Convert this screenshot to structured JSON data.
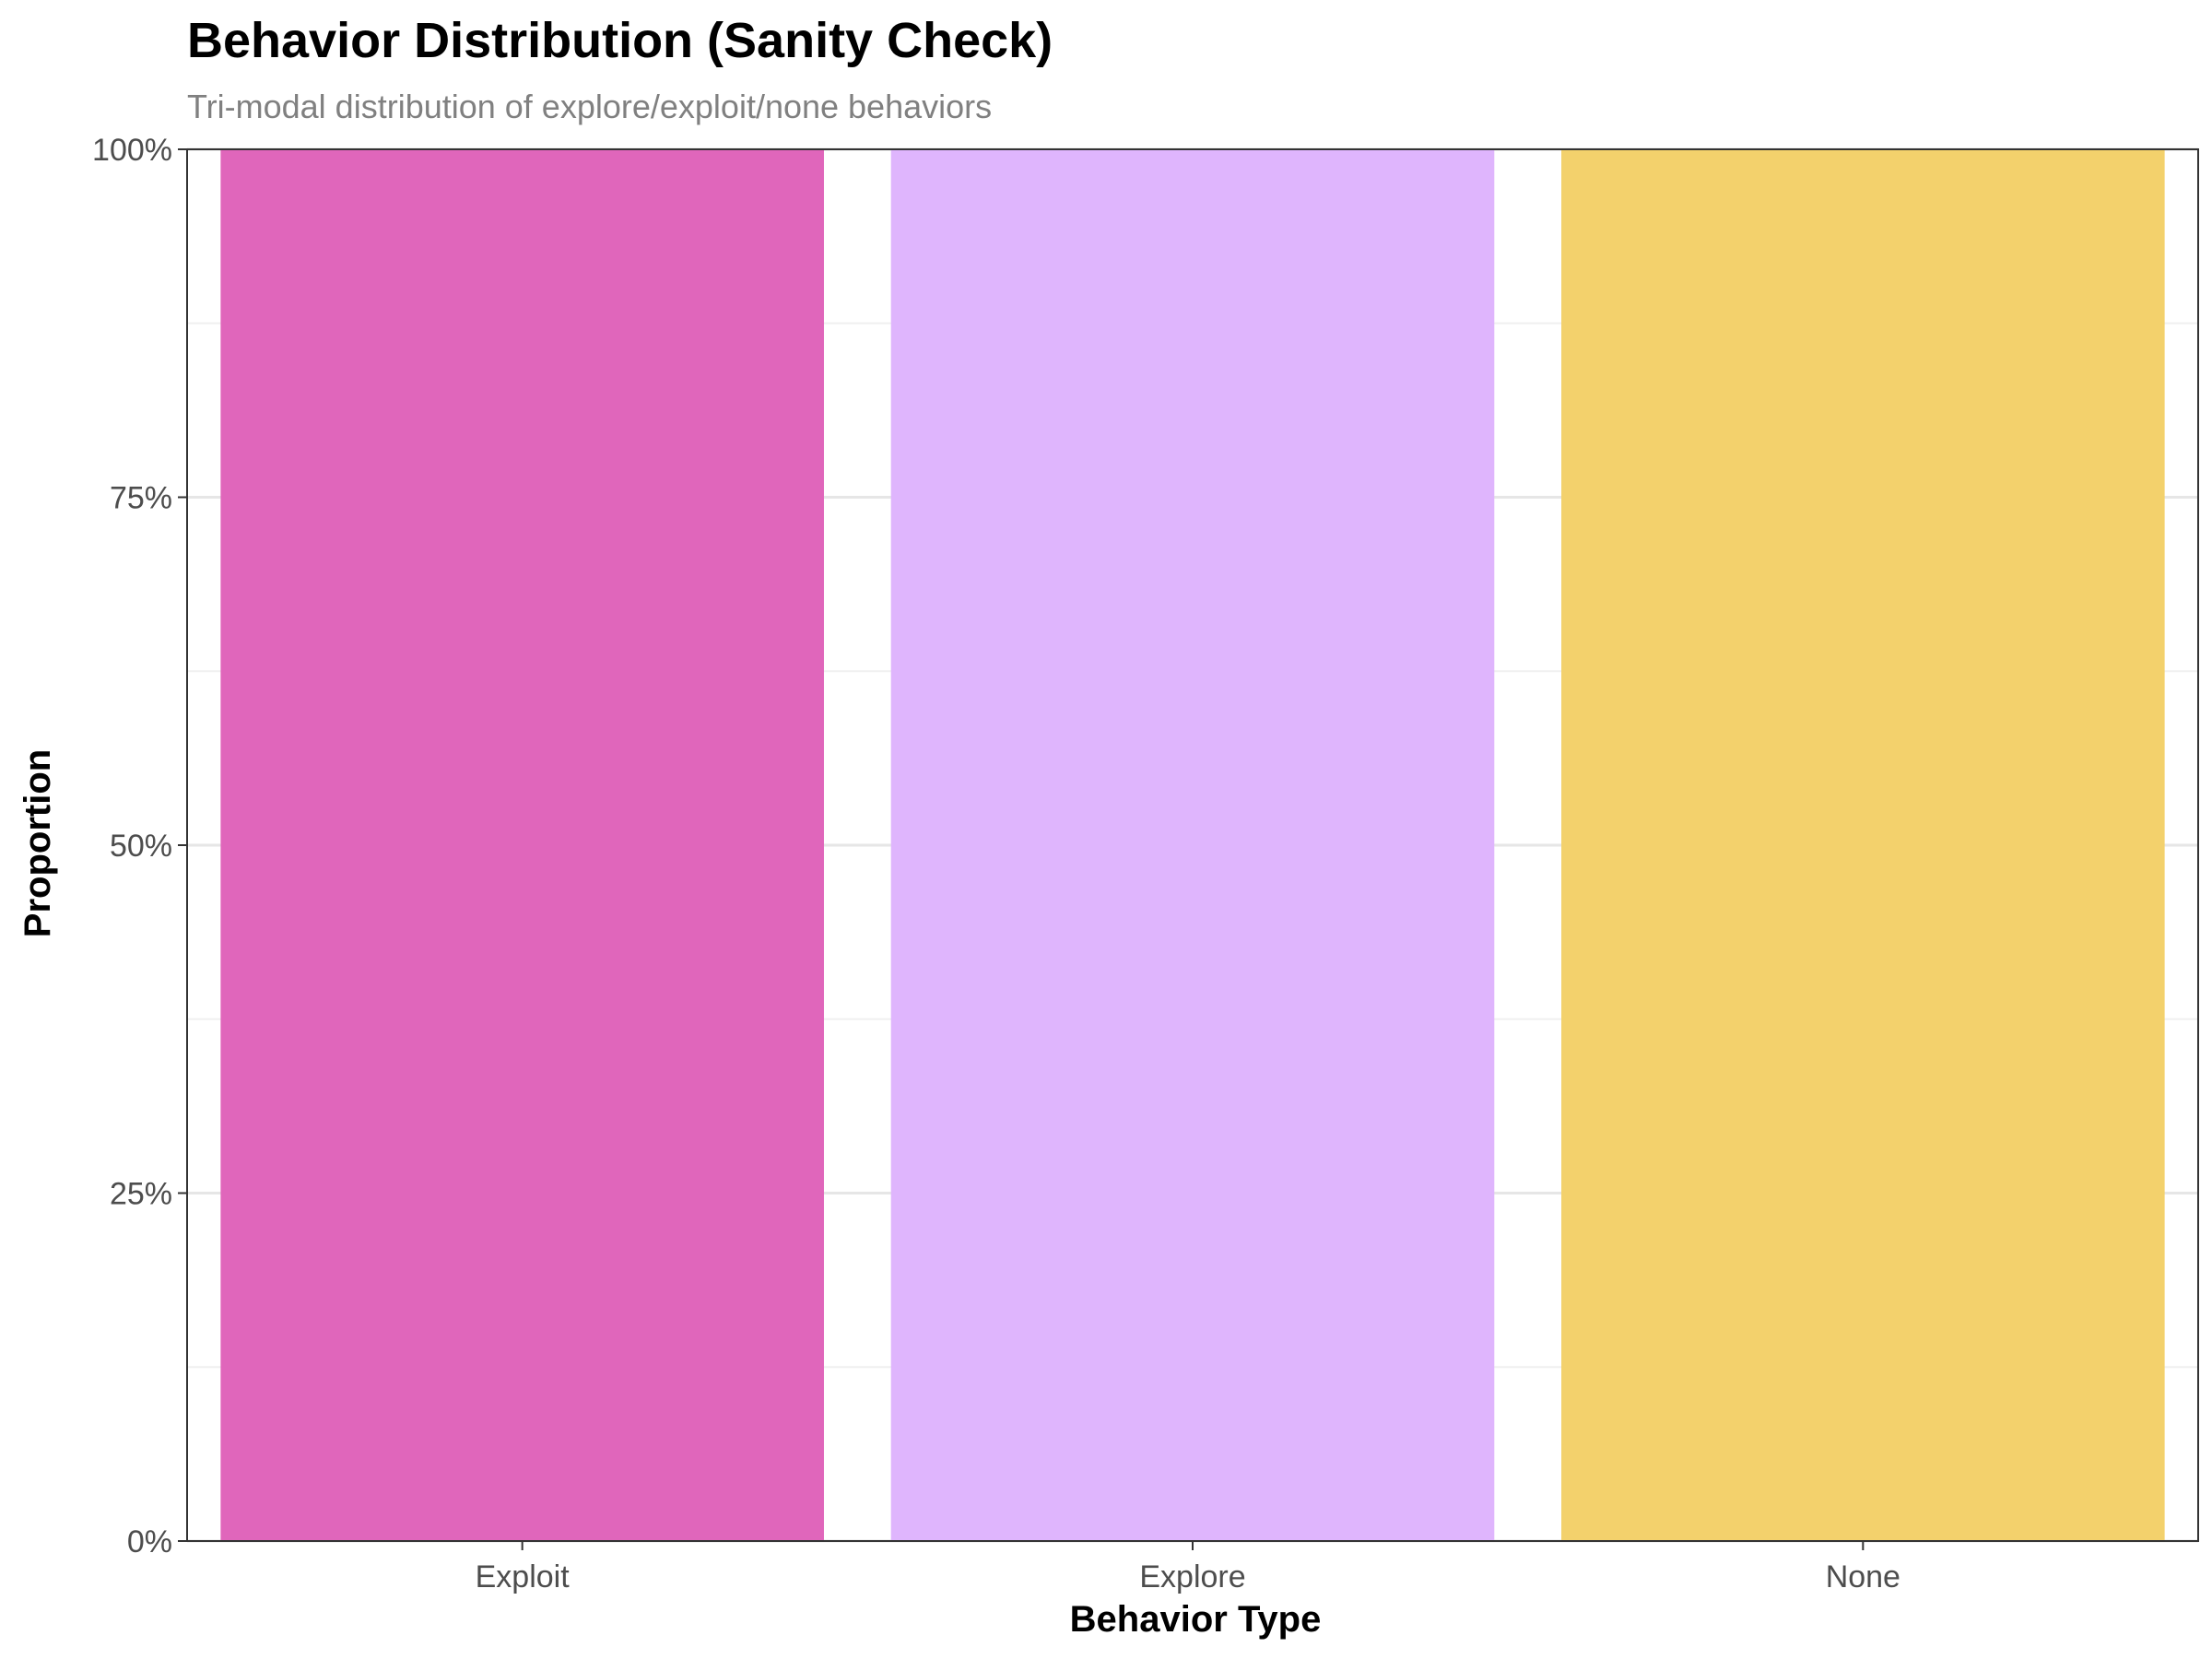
{
  "chart_data": {
    "type": "bar",
    "title": "Behavior Distribution (Sanity Check)",
    "subtitle": "Tri-modal distribution of explore/exploit/none behaviors",
    "xlabel": "Behavior Type",
    "ylabel": "Proportion",
    "categories": [
      "Exploit",
      "Explore",
      "None"
    ],
    "values": [
      1.0,
      1.0,
      1.0
    ],
    "colors": [
      "#e066bb",
      "#dfb5fd",
      "#f3d16c"
    ],
    "ylim": [
      0,
      1
    ],
    "y_ticks": [
      0,
      0.25,
      0.5,
      0.75,
      1.0
    ],
    "y_tick_labels": [
      "0%",
      "25%",
      "50%",
      "75%",
      "100%"
    ],
    "grid": true,
    "legend": "none"
  }
}
